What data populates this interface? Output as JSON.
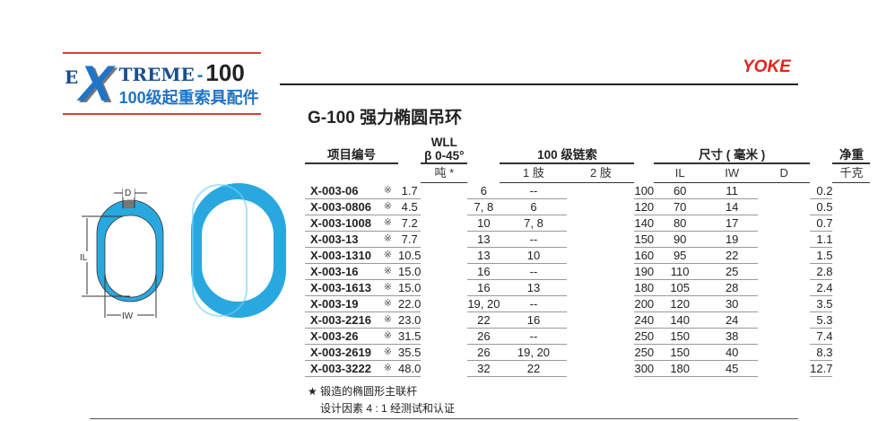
{
  "logo": {
    "e": "E",
    "x": "X",
    "treme": "TREME",
    "dash": "-",
    "num": "100",
    "subtitle": "100级起重索具配件"
  },
  "brand": "YOKE",
  "title": "G-100 强力椭圆吊环",
  "diagram": {
    "d": "D",
    "il": "IL",
    "iw": "IW"
  },
  "colors": {
    "ring": "#29a8e0",
    "brand_red": "#e2231a",
    "logo_blue": "#1e74c6"
  },
  "table": {
    "headers": {
      "item": "项目编号",
      "wll": "WLL",
      "wll_angle": "β 0-45°",
      "chain": "100 级链索",
      "dims": "尺寸 ( 毫米 )",
      "weight": "净重"
    },
    "subheaders": {
      "wll_unit": "吨 *",
      "leg1": "1 肢",
      "leg2": "2 肢",
      "il": "IL",
      "iw": "IW",
      "d": "D",
      "kg": "千克"
    },
    "rows": [
      [
        "X-003-06",
        "※",
        "1.7",
        "6",
        "--",
        "100",
        "60",
        "11",
        "0.2"
      ],
      [
        "X-003-0806",
        "※",
        "4.5",
        "7, 8",
        "6",
        "120",
        "70",
        "14",
        "0.5"
      ],
      [
        "X-003-1008",
        "※",
        "7.2",
        "10",
        "7, 8",
        "140",
        "80",
        "17",
        "0.7"
      ],
      [
        "X-003-13",
        "※",
        "7.7",
        "13",
        "--",
        "150",
        "90",
        "19",
        "1.1"
      ],
      [
        "X-003-1310",
        "※",
        "10.5",
        "13",
        "10",
        "160",
        "95",
        "22",
        "1.5"
      ],
      [
        "X-003-16",
        "※",
        "15.0",
        "16",
        "--",
        "190",
        "110",
        "25",
        "2.8"
      ],
      [
        "X-003-1613",
        "※",
        "15.0",
        "16",
        "13",
        "180",
        "105",
        "28",
        "2.4"
      ],
      [
        "X-003-19",
        "※",
        "22.0",
        "19, 20",
        "--",
        "200",
        "120",
        "30",
        "3.5"
      ],
      [
        "X-003-2216",
        "※",
        "23.0",
        "22",
        "16",
        "240",
        "140",
        "24",
        "5.3"
      ],
      [
        "X-003-26",
        "※",
        "31.5",
        "26",
        "--",
        "250",
        "150",
        "38",
        "7.4"
      ],
      [
        "X-003-2619",
        "※",
        "35.5",
        "26",
        "19, 20",
        "250",
        "150",
        "40",
        "8.3"
      ],
      [
        "X-003-3222",
        "※",
        "48.0",
        "32",
        "22",
        "300",
        "180",
        "45",
        "12.7"
      ]
    ]
  },
  "notes": {
    "line1": "★ 锻造的椭圆形主联杆",
    "line2": "设计因素 4 : 1 经测试和认证"
  }
}
